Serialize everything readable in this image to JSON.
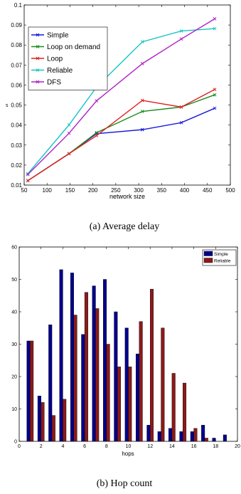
{
  "chart_data": [
    {
      "type": "line",
      "xlabel": "network size",
      "ylabel": "s",
      "caption": "(a) Average delay",
      "xlim": [
        50,
        500
      ],
      "ylim": [
        0.01,
        0.1
      ],
      "x_ticks": [
        50,
        100,
        150,
        200,
        250,
        300,
        350,
        400,
        450,
        500
      ],
      "y_ticks": [
        0.01,
        0.02,
        0.03,
        0.04,
        0.05,
        0.06,
        0.07,
        0.08,
        0.09,
        0.1
      ],
      "x_tick_labels": [
        "50",
        "100",
        "150",
        "200",
        "250",
        "300",
        "350",
        "400",
        "450",
        "500"
      ],
      "y_tick_labels": [
        "0.01",
        "0.02",
        "0.03",
        "0.04",
        "0.05",
        "0.06",
        "0.07",
        "0.08",
        "0.09",
        "0.1"
      ],
      "legend_position": "top-left",
      "x": [
        58,
        148,
        208,
        308,
        393,
        466
      ],
      "series": [
        {
          "name": "Simple",
          "color": "#1a1adb",
          "values": [
            0.0122,
            0.0257,
            0.0357,
            0.0377,
            0.0412,
            0.0484
          ]
        },
        {
          "name": "Loop on demand",
          "color": "#1a8a1a",
          "values": [
            0.0122,
            0.0257,
            0.0362,
            0.0468,
            0.049,
            0.0551
          ]
        },
        {
          "name": "Loop",
          "color": "#e02020",
          "values": [
            0.0122,
            0.0257,
            0.0347,
            0.0523,
            0.049,
            0.0578
          ]
        },
        {
          "name": "Reliable",
          "color": "#17c4c4",
          "values": [
            0.0157,
            0.0401,
            0.059,
            0.0816,
            0.087,
            0.0882
          ]
        },
        {
          "name": "DFS",
          "color": "#b020c8",
          "values": [
            0.0153,
            0.0359,
            0.0521,
            0.0707,
            0.083,
            0.0931
          ]
        }
      ]
    },
    {
      "type": "bar",
      "xlabel": "hops",
      "ylabel": "",
      "caption": "(b) Hop count",
      "xlim": [
        0,
        20
      ],
      "ylim": [
        0,
        60
      ],
      "x_ticks": [
        0,
        2,
        4,
        6,
        8,
        10,
        12,
        14,
        16,
        18,
        20
      ],
      "y_ticks": [
        0,
        10,
        20,
        30,
        40,
        50,
        60
      ],
      "x_tick_labels": [
        "0",
        "2",
        "4",
        "6",
        "8",
        "10",
        "12",
        "14",
        "16",
        "18",
        "20"
      ],
      "y_tick_labels": [
        "0",
        "10",
        "20",
        "30",
        "40",
        "50",
        "60"
      ],
      "legend_position": "top-right",
      "categories": [
        1,
        2,
        3,
        4,
        5,
        6,
        7,
        8,
        9,
        10,
        11,
        12,
        13,
        14,
        15,
        16,
        17,
        18,
        19
      ],
      "series": [
        {
          "name": "Simple",
          "color": "#00008b",
          "values": [
            31,
            14,
            36,
            53,
            52,
            33,
            48,
            50,
            40,
            35,
            27,
            5,
            3,
            4,
            3,
            3,
            5,
            1,
            2
          ]
        },
        {
          "name": "Reliable",
          "color": "#8b1a1a",
          "values": [
            31,
            12,
            8,
            13,
            39,
            46,
            41,
            30,
            23,
            23,
            37,
            47,
            35,
            21,
            18,
            4,
            1,
            0,
            0
          ]
        }
      ]
    }
  ]
}
